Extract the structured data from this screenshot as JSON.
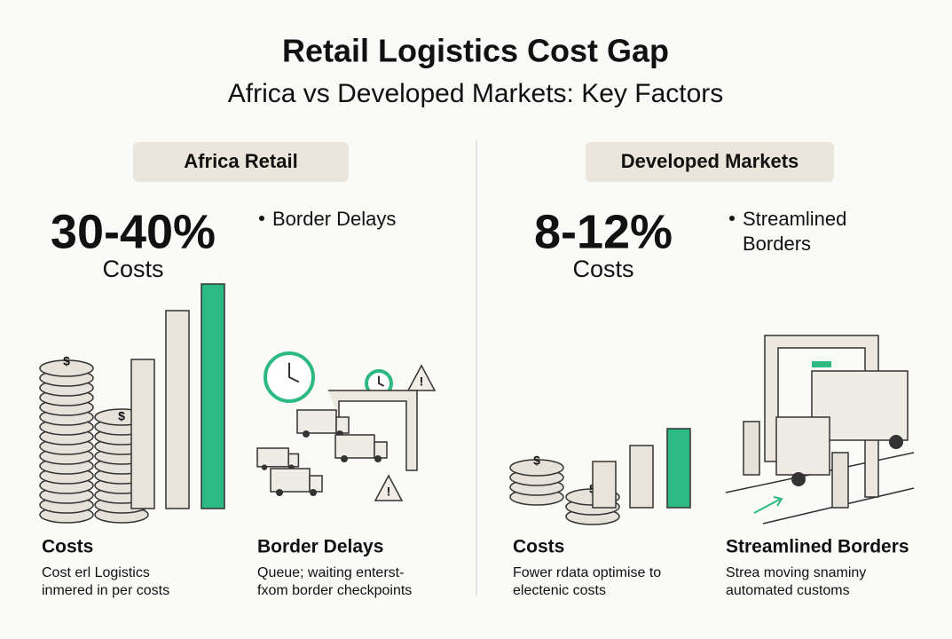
{
  "header": {
    "title": "Retail Logistics Cost Gap",
    "subtitle": "Africa vs Developed Markets: Key Factors"
  },
  "panels": [
    {
      "badge": "Africa Retail",
      "stat": "30-40%",
      "stat_label": "Costs",
      "bullet": [
        "Border Delays"
      ],
      "items": [
        {
          "title": "Costs",
          "lines": [
            "Cost erl Logistics",
            "inmered in per costs"
          ]
        },
        {
          "title": "Border Delays",
          "lines": [
            "Queue; waiting enterst-",
            "fxom border checkpoints"
          ]
        }
      ]
    },
    {
      "badge": "Developed Markets",
      "stat": "8-12%",
      "stat_label": "Costs",
      "bullet": [
        "Streamlined",
        "Borders"
      ],
      "items": [
        {
          "title": "Costs",
          "lines": [
            "Fower rdata optimise to",
            "electenic costs"
          ]
        },
        {
          "title": "Streamlined Borders",
          "lines": [
            "Strea moving snaminy",
            "automated customs"
          ]
        }
      ]
    }
  ]
}
